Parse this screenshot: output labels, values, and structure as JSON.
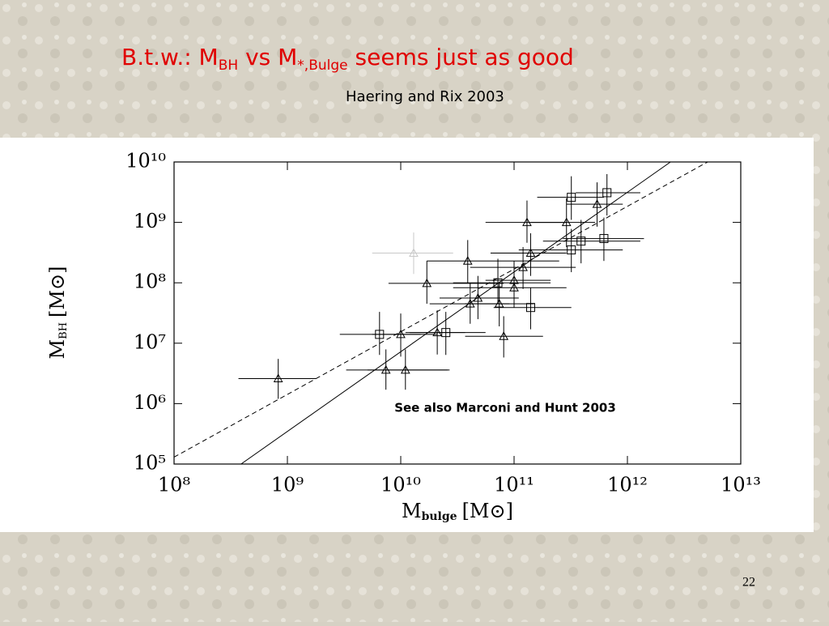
{
  "slide": {
    "title": [
      "B.t.w.: M",
      "BH",
      " vs M",
      "*,Bulge",
      " seems just as good"
    ],
    "subtitle": "Haering and Rix 2003",
    "page_number": "22"
  },
  "chart_data": {
    "type": "scatter",
    "log_x": true,
    "log_y": true,
    "xlabel": {
      "symbol": "M",
      "subscript": "bulge",
      "unit": "[M⊙]"
    },
    "ylabel": {
      "symbol": "M",
      "subscript": "BH",
      "unit": "[M⊙]"
    },
    "annotation": "See also Marconi and Hunt 2003",
    "xlim": [
      100000000.0,
      10000000000000.0
    ],
    "ylim": [
      100000.0,
      10000000000.0
    ],
    "xticks": [
      {
        "value": 100000000.0,
        "label": "10⁸"
      },
      {
        "value": 1000000000.0,
        "label": "10⁹"
      },
      {
        "value": 10000000000.0,
        "label": "10¹⁰"
      },
      {
        "value": 100000000000.0,
        "label": "10¹¹"
      },
      {
        "value": 1000000000000.0,
        "label": "10¹²"
      },
      {
        "value": 10000000000000.0,
        "label": "10¹³"
      }
    ],
    "yticks": [
      {
        "value": 100000.0,
        "label": "10⁵"
      },
      {
        "value": 1000000.0,
        "label": "10⁶"
      },
      {
        "value": 10000000.0,
        "label": "10⁷"
      },
      {
        "value": 100000000.0,
        "label": "10⁸"
      },
      {
        "value": 1000000000.0,
        "label": "10⁹"
      },
      {
        "value": 10000000000.0,
        "label": "10¹⁰"
      }
    ],
    "series": [
      {
        "marker": "triangle",
        "color": "#000000",
        "x": [
          830000000.0,
          7400000000.0,
          11000000000.0,
          17000000000.0,
          10000000000.0,
          21000000000.0,
          39000000000.0,
          41000000000.0,
          48000000000.0,
          74000000000.0,
          81000000000.0,
          100000000000.0,
          100000000000.0,
          120000000000.0,
          130000000000.0,
          140000000000.0,
          290000000000.0,
          540000000000.0
        ],
        "values": [
          2600000.0,
          3600000.0,
          3600000.0,
          98000000.0,
          14000000.0,
          15000000.0,
          230000000.0,
          45000000.0,
          56000000.0,
          45000000.0,
          13000000.0,
          83000000.0,
          110000000.0,
          180000000.0,
          1000000000.0,
          310000000.0,
          1000000000.0,
          2000000000.0
        ],
        "x_range": [
          [
            370000000.0,
            1800000000.0
          ],
          [
            3300000000.0,
            27000000000.0
          ],
          [
            5100000000.0,
            26000000000.0
          ],
          [
            7800000000.0,
            81000000000.0
          ],
          [
            5600000000.0,
            21000000000.0
          ],
          [
            12000000000.0,
            37000000000.0
          ],
          [
            17000000000.0,
            250000000000.0
          ],
          [
            18000000000.0,
            91000000000.0
          ],
          [
            22000000000.0,
            110000000000.0
          ],
          [
            37000000000.0,
            150000000000.0
          ],
          [
            37000000000.0,
            180000000000.0
          ],
          [
            29000000000.0,
            290000000000.0
          ],
          [
            56000000000.0,
            210000000000.0
          ],
          [
            41000000000.0,
            350000000000.0
          ],
          [
            56000000000.0,
            290000000000.0
          ],
          [
            62000000000.0,
            290000000000.0
          ],
          [
            140000000000.0,
            520000000000.0
          ],
          [
            290000000000.0,
            910000000000.0
          ]
        ],
        "y_range": [
          [
            1200000.0,
            5500000.0
          ],
          [
            1700000.0,
            7900000.0
          ],
          [
            1700000.0,
            7900000.0
          ],
          [
            45000000.0,
            230000000.0
          ],
          [
            6000000.0,
            31000000.0
          ],
          [
            6500000.0,
            35000000.0
          ],
          [
            98000000.0,
            510000000.0
          ],
          [
            21000000.0,
            98000000.0
          ],
          [
            25000000.0,
            130000000.0
          ],
          [
            19000000.0,
            100000000.0
          ],
          [
            5800000.0,
            28000000.0
          ],
          [
            39000000.0,
            180000000.0
          ],
          [
            49000000.0,
            230000000.0
          ],
          [
            79000000.0,
            390000000.0
          ],
          [
            460000000.0,
            2300000000.0
          ],
          [
            130000000.0,
            660000000.0
          ],
          [
            390000000.0,
            2500000000.0
          ],
          [
            850000000.0,
            4600000000.0
          ]
        ]
      },
      {
        "marker": "triangle",
        "color": "#c8c8c8",
        "x": [
          13000000000.0
        ],
        "values": [
          310000000.0
        ],
        "x_range": [
          [
            5600000000.0,
            29000000000.0
          ]
        ],
        "y_range": [
          [
            140000000.0,
            680000000.0
          ]
        ]
      },
      {
        "marker": "square",
        "color": "#000000",
        "x": [
          6500000000.0,
          25000000000.0,
          72000000000.0,
          140000000000.0,
          320000000000.0,
          320000000000.0,
          390000000000.0,
          620000000000.0,
          660000000000.0
        ],
        "values": [
          14000000.0,
          15000000.0,
          100000000.0,
          39000000.0,
          2600000000.0,
          350000000.0,
          490000000.0,
          540000000.0,
          3100000000.0
        ],
        "x_range": [
          [
            2900000000.0,
            15000000000.0
          ],
          [
            11000000000.0,
            56000000000.0
          ],
          [
            29000000000.0,
            210000000000.0
          ],
          [
            66000000000.0,
            320000000000.0
          ],
          [
            160000000000.0,
            620000000000.0
          ],
          [
            110000000000.0,
            910000000000.0
          ],
          [
            180000000000.0,
            1300000000000.0
          ],
          [
            270000000000.0,
            1400000000000.0
          ],
          [
            350000000000.0,
            1300000000000.0
          ]
        ],
        "y_range": [
          [
            6400000.0,
            33000000.0
          ],
          [
            6400000.0,
            33000000.0
          ],
          [
            45000000.0,
            250000000.0
          ],
          [
            17000000.0,
            83000000.0
          ],
          [
            1100000000.0,
            5800000000.0
          ],
          [
            150000000.0,
            780000000.0
          ],
          [
            210000000.0,
            1100000000.0
          ],
          [
            230000000.0,
            1200000000.0
          ],
          [
            1300000000.0,
            6300000000.0
          ]
        ]
      }
    ],
    "fits": [
      {
        "style": "solid",
        "x": [
          390000000.0,
          2400000000000.0
        ],
        "values": [
          100000.0,
          10000000000.0
        ]
      },
      {
        "style": "dashed",
        "x": [
          100000000.0,
          5100000000000.0
        ],
        "values": [
          130000.0,
          10000000000.0
        ]
      }
    ]
  }
}
